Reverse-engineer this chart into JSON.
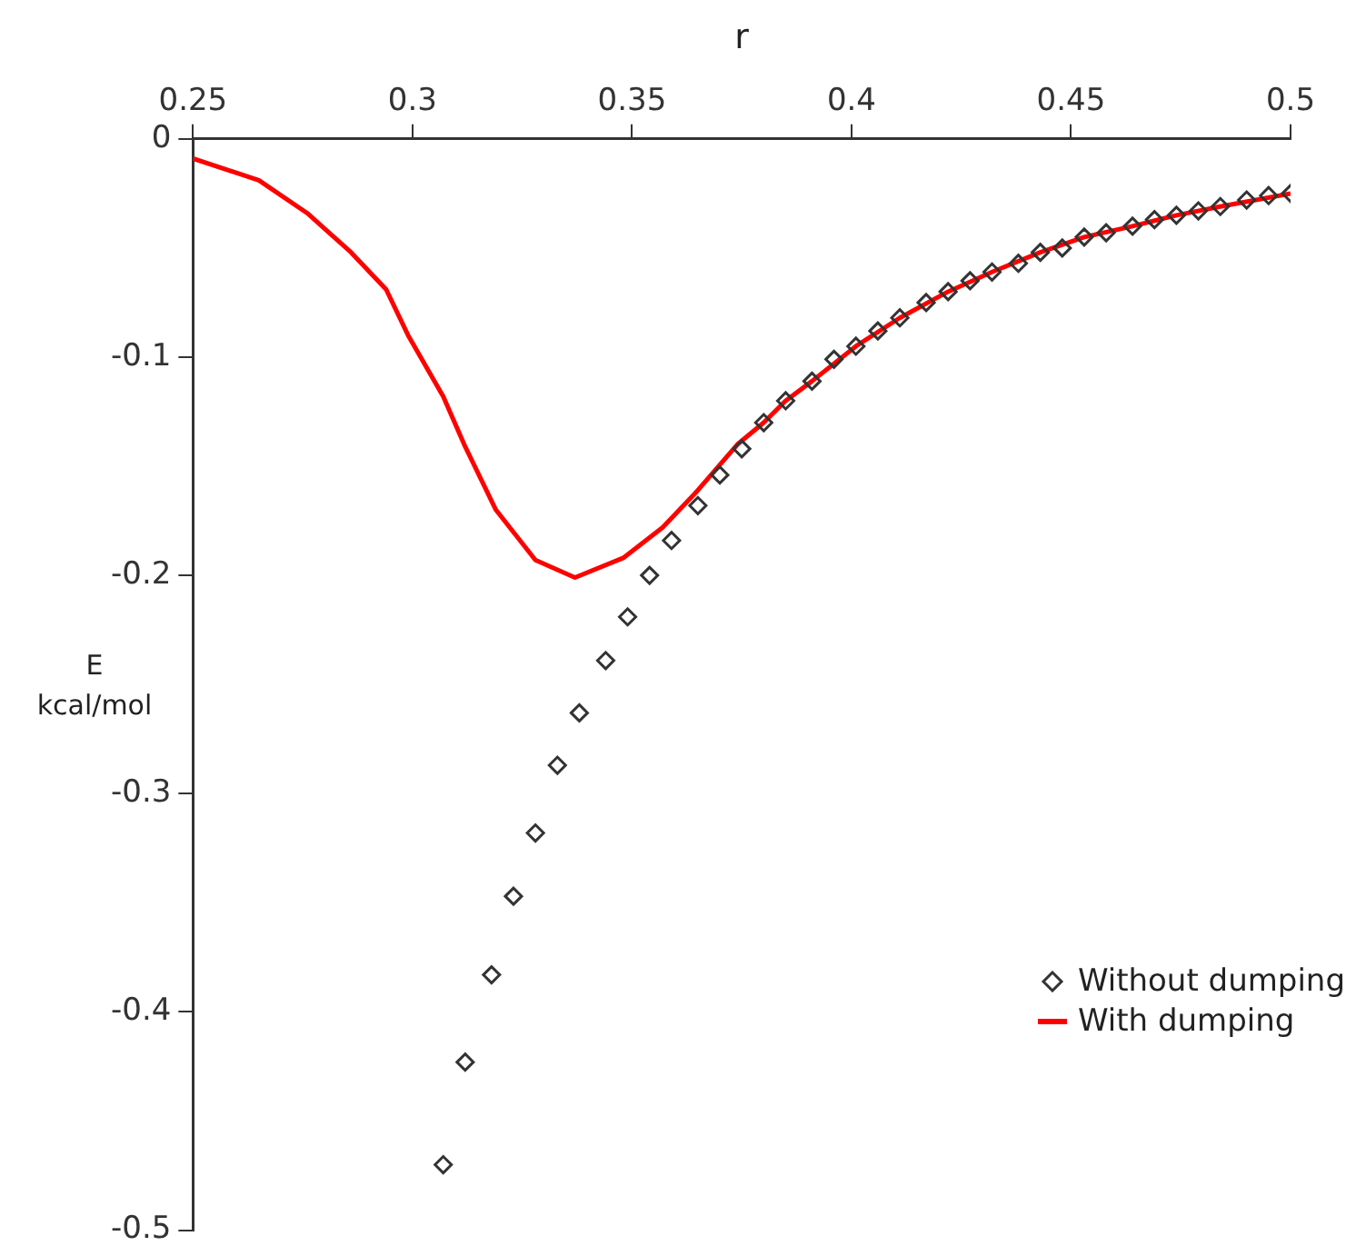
{
  "chart_data": {
    "type": "scatter",
    "xlabel": "r",
    "ylabel": "E kcal/mol",
    "xlim": [
      0.25,
      0.5
    ],
    "ylim": [
      -0.5,
      0
    ],
    "xticks": [
      0.25,
      0.3,
      0.35,
      0.4,
      0.45,
      0.5
    ],
    "yticks": [
      -0.5,
      -0.4,
      -0.3,
      -0.2,
      -0.1,
      0
    ],
    "grid": false,
    "legend": "bottom right",
    "series": [
      {
        "name": "Without dumping",
        "type": "scatter",
        "marker": "diamond",
        "color": "#333333",
        "x": [
          0.307,
          0.312,
          0.318,
          0.323,
          0.328,
          0.333,
          0.338,
          0.344,
          0.349,
          0.354,
          0.359,
          0.365,
          0.37,
          0.375,
          0.38,
          0.385,
          0.391,
          0.396,
          0.401,
          0.406,
          0.411,
          0.417,
          0.422,
          0.427,
          0.432,
          0.438,
          0.443,
          0.448,
          0.453,
          0.458,
          0.464,
          0.469,
          0.474,
          0.479,
          0.484,
          0.49,
          0.495,
          0.5
        ],
        "values": [
          -0.47,
          -0.423,
          -0.383,
          -0.347,
          -0.318,
          -0.287,
          -0.263,
          -0.239,
          -0.219,
          -0.2,
          -0.184,
          -0.168,
          -0.154,
          -0.142,
          -0.13,
          -0.12,
          -0.111,
          -0.101,
          -0.095,
          -0.088,
          -0.082,
          -0.075,
          -0.07,
          -0.065,
          -0.061,
          -0.057,
          -0.052,
          -0.05,
          -0.045,
          -0.043,
          -0.04,
          -0.037,
          -0.035,
          -0.033,
          -0.031,
          -0.028,
          -0.026,
          -0.025
        ]
      },
      {
        "name": "With dumping",
        "type": "line",
        "marker": "none",
        "line_style": "solid",
        "color": "#ff0000",
        "x": [
          0.25,
          0.265,
          0.276,
          0.286,
          0.294,
          0.299,
          0.307,
          0.312,
          0.319,
          0.328,
          0.337,
          0.348,
          0.357,
          0.365,
          0.374,
          0.38,
          0.385,
          0.391,
          0.401,
          0.411,
          0.422,
          0.432,
          0.443,
          0.453,
          0.464,
          0.474,
          0.484,
          0.5
        ],
        "values": [
          -0.009,
          -0.019,
          -0.034,
          -0.052,
          -0.069,
          -0.09,
          -0.118,
          -0.141,
          -0.17,
          -0.193,
          -0.201,
          -0.192,
          -0.178,
          -0.161,
          -0.14,
          -0.13,
          -0.12,
          -0.111,
          -0.095,
          -0.082,
          -0.07,
          -0.061,
          -0.052,
          -0.045,
          -0.04,
          -0.035,
          -0.031,
          -0.025
        ]
      }
    ]
  }
}
